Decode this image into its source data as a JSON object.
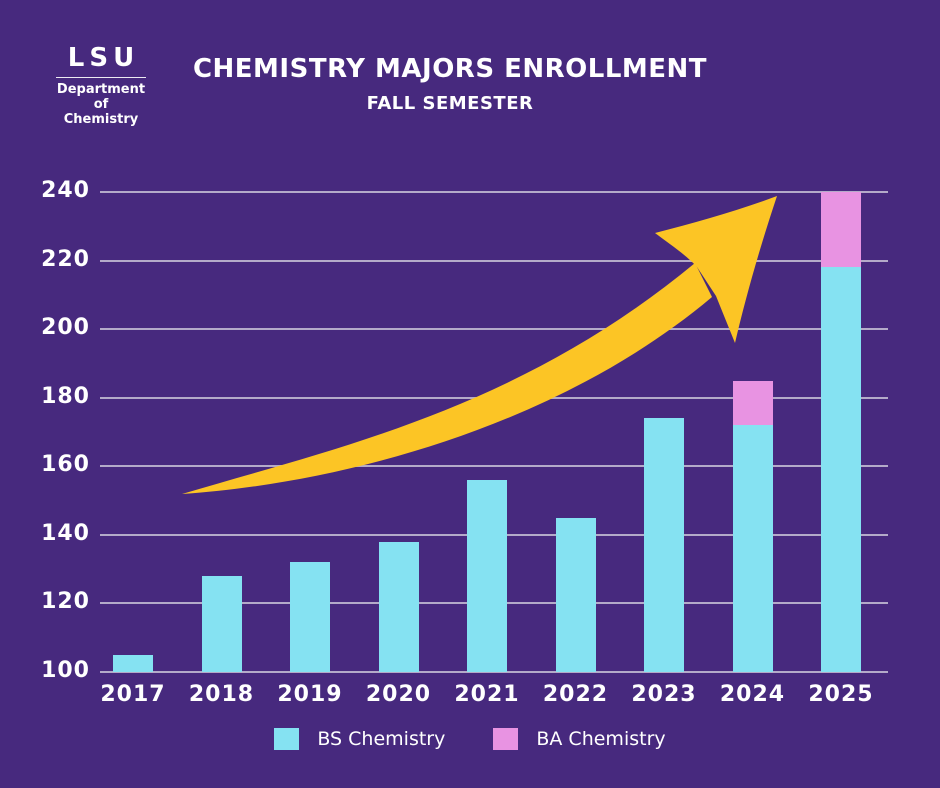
{
  "header": {
    "logo": {
      "acronym": "LSU",
      "dept_line1": "Department of",
      "dept_line2": "Chemistry"
    },
    "title": "CHEMISTRY MAJORS ENROLLMENT",
    "subtitle": "FALL SEMESTER"
  },
  "chart_data": {
    "type": "bar",
    "stacked": true,
    "title": "CHEMISTRY MAJORS ENROLLMENT",
    "subtitle": "FALL SEMESTER",
    "categories": [
      "2017",
      "2018",
      "2019",
      "2020",
      "2021",
      "2022",
      "2023",
      "2024",
      "2025"
    ],
    "series": [
      {
        "name": "BS Chemistry",
        "color": "#85E2F2",
        "values": [
          105,
          128,
          132,
          138,
          156,
          145,
          174,
          172,
          218
        ]
      },
      {
        "name": "BA Chemistry",
        "color": "#E893E2",
        "values": [
          0,
          0,
          0,
          0,
          0,
          0,
          0,
          13,
          22
        ]
      }
    ],
    "totals": [
      105,
      128,
      132,
      138,
      156,
      145,
      174,
      185,
      240
    ],
    "xlabel": "",
    "ylabel": "",
    "ylim": [
      100,
      240
    ],
    "yticks": [
      100,
      120,
      140,
      160,
      180,
      200,
      220,
      240
    ],
    "grid": true,
    "legend_position": "bottom",
    "annotations": [
      "yellow upward trend arrow from 2017 toward 2025"
    ]
  },
  "legend": {
    "items": [
      {
        "label": "BS Chemistry",
        "color": "#85E2F2"
      },
      {
        "label": "BA Chemistry",
        "color": "#E893E2"
      }
    ]
  },
  "colors": {
    "background": "#47297E",
    "bar_bs": "#85E2F2",
    "bar_ba": "#E893E2",
    "arrow": "#FCC525",
    "gridline": "#C8C1D6",
    "text": "#FFFFFF"
  }
}
